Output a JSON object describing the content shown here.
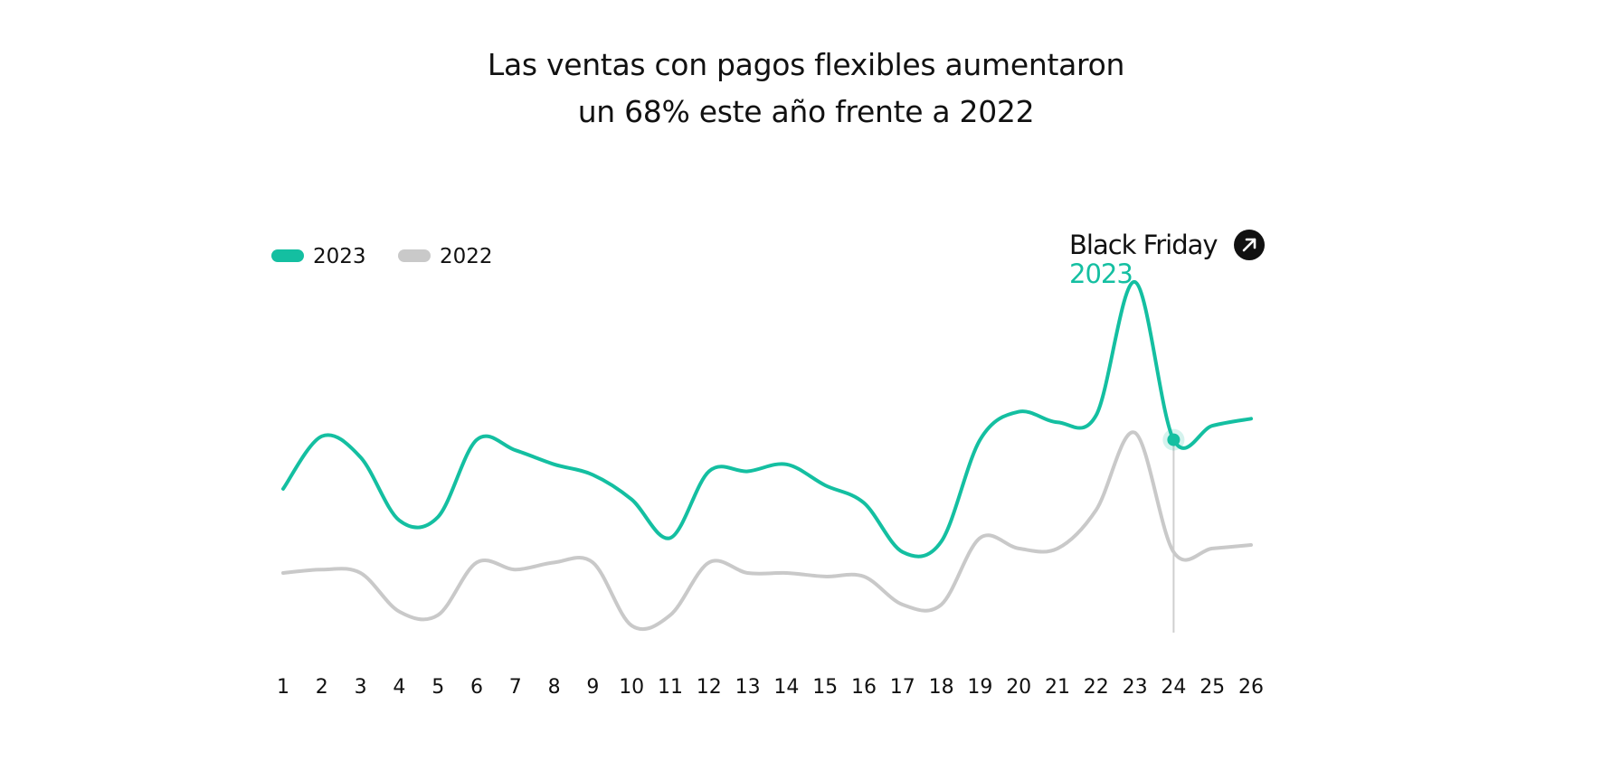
{
  "title_lines": [
    "Las ventas con pagos flexibles aumentaron",
    "un 68% este año frente a 2022"
  ],
  "colors": {
    "series_2023": "#14bfa1",
    "series_2022": "#c9c9c9",
    "marker_line": "#cfcfcf",
    "text": "#111111"
  },
  "chart_data": {
    "type": "line",
    "title": "Las ventas con pagos flexibles aumentaron un 68% este año frente a 2022",
    "xlabel": "",
    "ylabel": "",
    "x": [
      1,
      2,
      3,
      4,
      5,
      6,
      7,
      8,
      9,
      10,
      11,
      12,
      13,
      14,
      15,
      16,
      17,
      18,
      19,
      20,
      21,
      22,
      23,
      24,
      25,
      26
    ],
    "ylim": [
      0,
      100
    ],
    "grid": false,
    "legend_position": "top-left",
    "series": [
      {
        "name": "2023",
        "color_key": "series_2023",
        "values": [
          41,
          56,
          50,
          32,
          33,
          55,
          52,
          48,
          45,
          38,
          27,
          46,
          46,
          48,
          42,
          37,
          23,
          26,
          55,
          63,
          60,
          62,
          100,
          55,
          59,
          61
        ]
      },
      {
        "name": "2022",
        "color_key": "series_2022",
        "values": [
          17,
          18,
          17,
          6,
          5,
          20,
          18,
          20,
          20,
          2,
          5,
          20,
          17,
          17,
          16,
          16,
          8,
          8,
          27,
          24,
          24,
          35,
          57,
          23,
          24,
          25
        ]
      }
    ],
    "annotation": {
      "x": 24,
      "series": "2023",
      "label": "Black Friday",
      "sublabel": "2023",
      "icon": "arrow-up-right-icon"
    }
  }
}
